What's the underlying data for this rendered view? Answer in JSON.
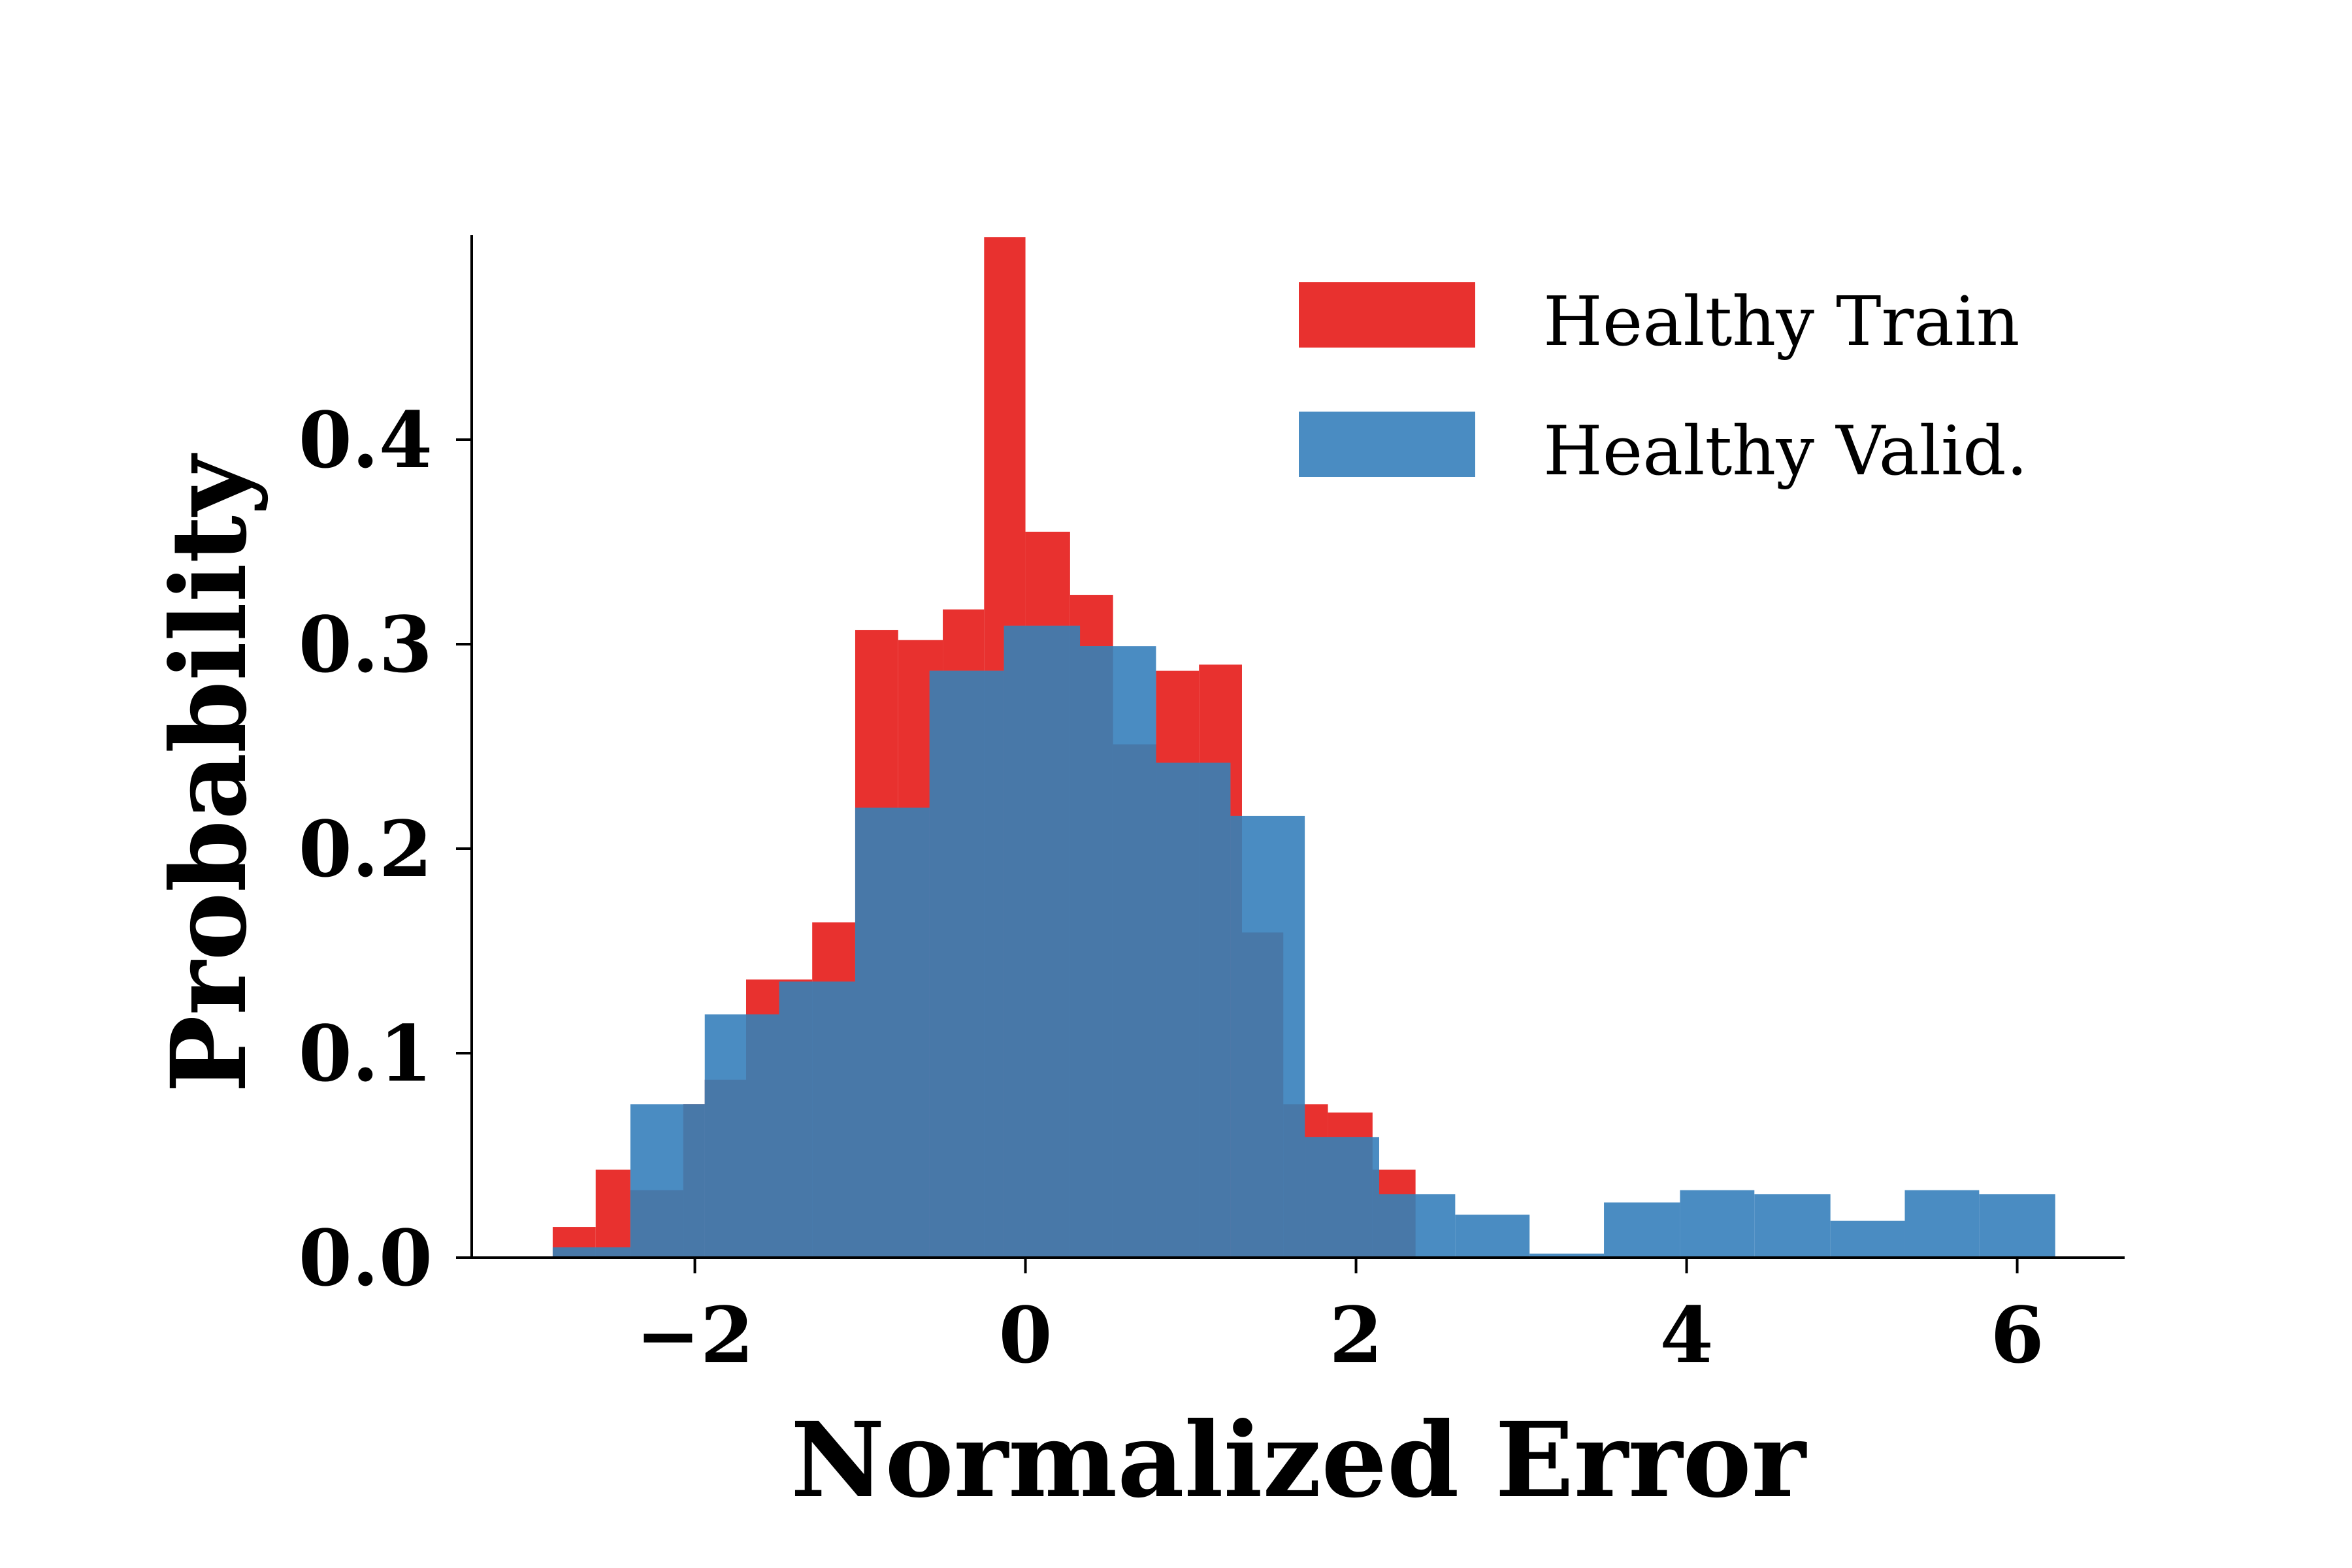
{
  "chart_data": {
    "type": "bar",
    "title": "",
    "xlabel": "Normalized Error",
    "ylabel": "Probability",
    "xlim": [
      -3.35,
      6.65
    ],
    "ylim": [
      0,
      0.5
    ],
    "xticks": [
      -2,
      0,
      2,
      4,
      6
    ],
    "xtick_labels": [
      "−2",
      "0",
      "2",
      "4",
      "6"
    ],
    "yticks": [
      0.0,
      0.1,
      0.2,
      0.3,
      0.4
    ],
    "ytick_labels": [
      "0.0",
      "0.1",
      "0.2",
      "0.3",
      "0.4"
    ],
    "grid": false,
    "legend": "top-right",
    "overlap_color": "#4878a8",
    "series": [
      {
        "name": "Healthy Train",
        "color": "#e8312f",
        "bins": [
          [
            -2.86,
            -2.6,
            0.015
          ],
          [
            -2.6,
            -2.39,
            0.043
          ],
          [
            -2.39,
            -2.07,
            0.033
          ],
          [
            -2.07,
            -1.94,
            0.075
          ],
          [
            -1.94,
            -1.69,
            0.087
          ],
          [
            -1.69,
            -1.29,
            0.136
          ],
          [
            -1.29,
            -1.03,
            0.164
          ],
          [
            -1.03,
            -0.77,
            0.307
          ],
          [
            -0.77,
            -0.5,
            0.302
          ],
          [
            -0.5,
            -0.25,
            0.317
          ],
          [
            -0.25,
            0.0,
            0.499
          ],
          [
            0.0,
            0.27,
            0.355
          ],
          [
            0.27,
            0.53,
            0.324
          ],
          [
            0.53,
            0.79,
            0.251
          ],
          [
            0.79,
            1.05,
            0.287
          ],
          [
            1.05,
            1.31,
            0.29
          ],
          [
            1.31,
            1.56,
            0.159
          ],
          [
            1.56,
            1.83,
            0.075
          ],
          [
            1.83,
            2.1,
            0.071
          ],
          [
            2.1,
            2.36,
            0.043
          ],
          [
            2.36,
            2.62,
            0.0
          ]
        ]
      },
      {
        "name": "Healthy Valid.",
        "color": "#4a8cc2",
        "bins": [
          [
            -2.86,
            -2.39,
            0.005
          ],
          [
            -2.39,
            -1.94,
            0.075
          ],
          [
            -1.94,
            -1.49,
            0.119
          ],
          [
            -1.49,
            -1.03,
            0.135
          ],
          [
            -1.03,
            -0.58,
            0.22
          ],
          [
            -0.58,
            -0.13,
            0.287
          ],
          [
            -0.13,
            0.33,
            0.309
          ],
          [
            0.33,
            0.79,
            0.299
          ],
          [
            0.79,
            0.53,
            0.0
          ],
          [
            0.53,
            1.24,
            0.242
          ],
          [
            1.24,
            1.69,
            0.216
          ],
          [
            1.69,
            2.14,
            0.059
          ],
          [
            2.14,
            2.6,
            0.031
          ],
          [
            2.6,
            3.05,
            0.021
          ],
          [
            3.05,
            3.5,
            0.002
          ],
          [
            3.5,
            3.96,
            0.027
          ],
          [
            3.96,
            4.41,
            0.033
          ],
          [
            4.41,
            4.87,
            0.031
          ],
          [
            4.87,
            5.32,
            0.018
          ],
          [
            5.32,
            5.77,
            0.033
          ],
          [
            5.77,
            6.23,
            0.031
          ]
        ]
      }
    ]
  }
}
